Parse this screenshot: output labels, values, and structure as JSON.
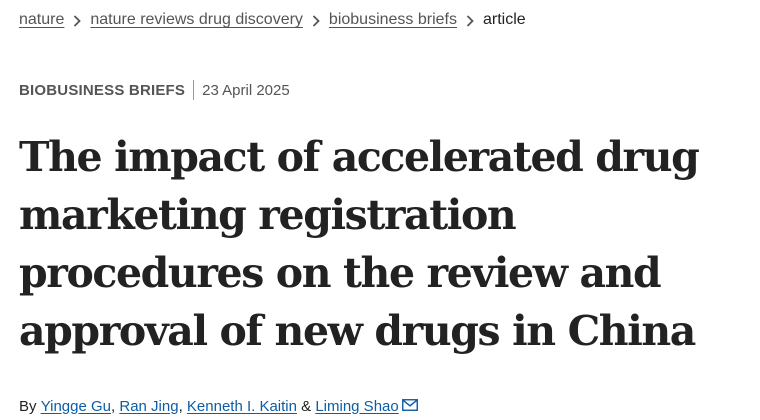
{
  "breadcrumb": {
    "items": [
      {
        "label": "nature"
      },
      {
        "label": "nature reviews drug discovery"
      },
      {
        "label": "biobusiness briefs"
      }
    ],
    "current": "article"
  },
  "meta": {
    "article_type": "BioBusiness Briefs",
    "date": "23 April 2025"
  },
  "title": "The impact of accelerated drug marketing registration procedures on the review and approval of new drugs in China",
  "byline": {
    "prefix": "By ",
    "authors": [
      {
        "name": "Yingge Gu"
      },
      {
        "name": "Ran Jing"
      },
      {
        "name": "Kenneth I. Kaitin"
      },
      {
        "name": "Liming Shao"
      }
    ],
    "sep1": ", ",
    "sep2": ", ",
    "sep3": " & "
  },
  "icons": {
    "chevron": "chevron-right-icon",
    "mail": "mail-icon"
  },
  "colors": {
    "link_gray": "#555555",
    "author_link": "#0c5da5",
    "text": "#222222"
  }
}
